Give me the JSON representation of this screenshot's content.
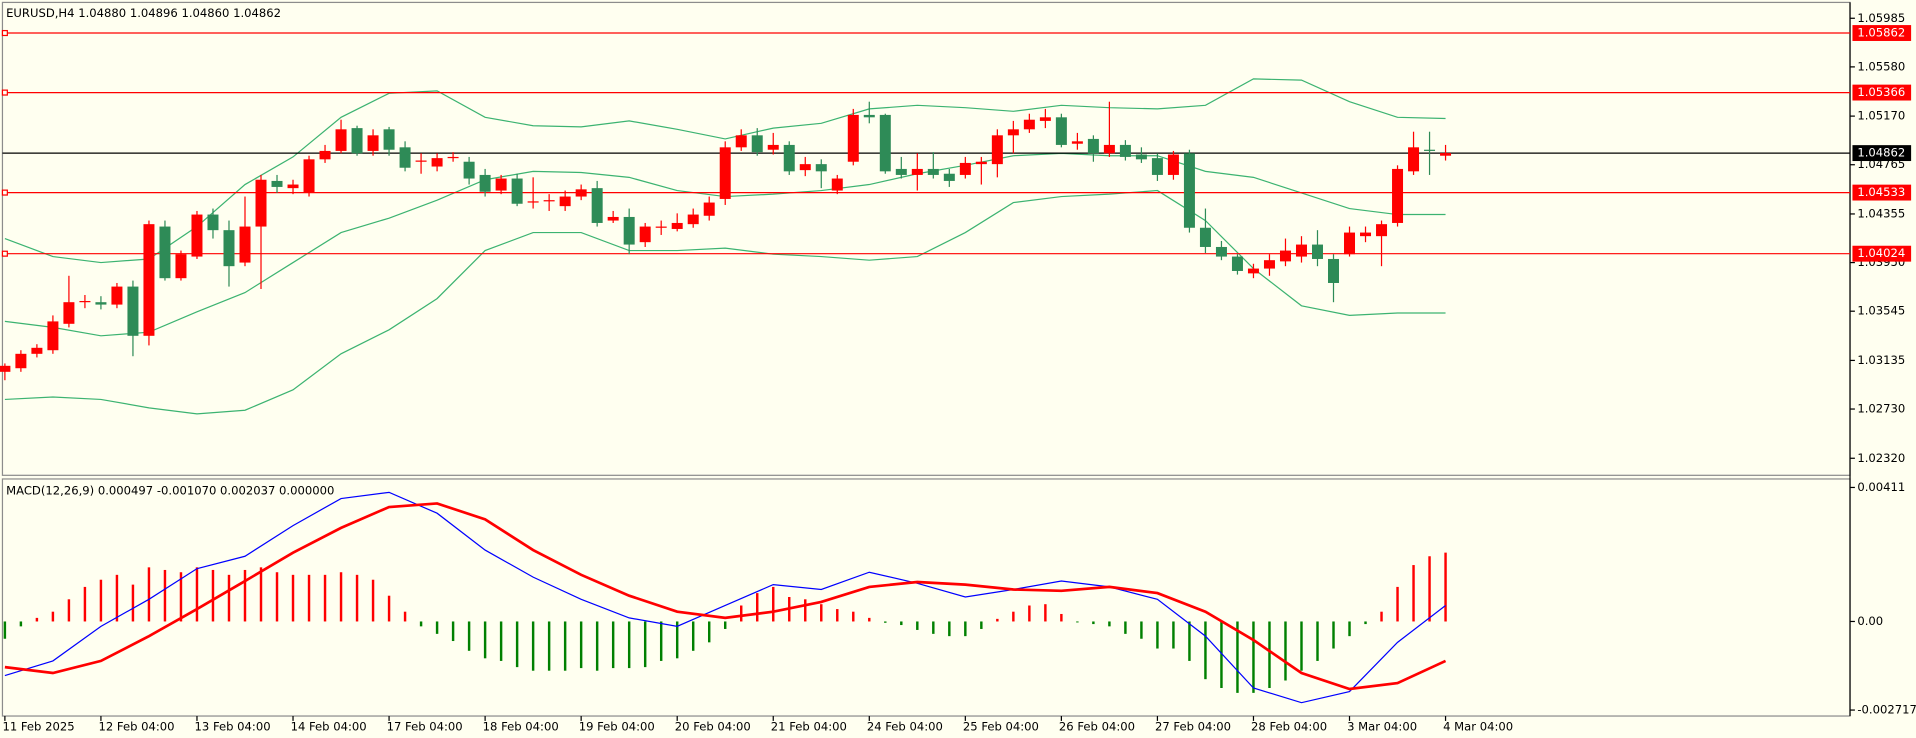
{
  "chart_data": [
    {
      "type": "candlestick",
      "title": "EURUSD,H4  1.04880 1.04896 1.04860 1.04862",
      "categories": [
        "11 Feb 2025",
        null,
        null,
        null,
        null,
        null,
        "12 Feb 04:00",
        null,
        null,
        null,
        null,
        null,
        "13 Feb 04:00",
        null,
        null,
        null,
        null,
        null,
        "14 Feb 04:00",
        null,
        null,
        null,
        null,
        null,
        "17 Feb 04:00",
        null,
        null,
        null,
        null,
        null,
        "18 Feb 04:00",
        null,
        null,
        null,
        null,
        null,
        "19 Feb 04:00",
        null,
        null,
        null,
        null,
        null,
        "20 Feb 04:00",
        null,
        null,
        null,
        null,
        null,
        "21 Feb 04:00",
        null,
        null,
        null,
        null,
        null,
        "24 Feb 04:00",
        null,
        null,
        null,
        null,
        null,
        "25 Feb 04:00",
        null,
        null,
        null,
        null,
        null,
        "26 Feb 04:00",
        null,
        null,
        null,
        null,
        null,
        "27 Feb 04:00",
        null,
        null,
        null,
        null,
        null,
        "28 Feb 04:00",
        null,
        null,
        null,
        null,
        null,
        "3 Mar 04:00",
        null,
        null,
        null,
        null,
        null,
        "4 Mar 04:00"
      ],
      "open": [
        1.0304,
        1.0307,
        1.0319,
        1.0322,
        1.0344,
        1.0362,
        1.0362,
        1.036,
        1.0375,
        1.0334,
        1.0425,
        1.0382,
        1.04,
        1.0435,
        1.0422,
        1.0395,
        1.0425,
        1.0463,
        1.0457,
        1.0453,
        1.0481,
        1.0488,
        1.0507,
        1.0488,
        1.0506,
        1.0491,
        1.0479,
        1.0475,
        1.0482,
        1.0479,
        1.0468,
        1.0455,
        1.0465,
        1.0445,
        1.0446,
        1.0442,
        1.045,
        1.0457,
        1.043,
        1.0433,
        1.0412,
        1.0424,
        1.0423,
        1.0427,
        1.0434,
        1.0448,
        1.0491,
        1.0501,
        1.0489,
        1.0493,
        1.0472,
        1.0477,
        1.0455,
        1.0479,
        1.0518,
        1.0518,
        1.0473,
        1.0468,
        1.0473,
        1.0469,
        1.0468,
        1.0477,
        1.0477,
        1.0501,
        1.0506,
        1.0513,
        1.0516,
        1.0494,
        1.0498,
        1.0486,
        1.0493,
        1.0485,
        1.0482,
        1.0468,
        1.0486,
        1.0424,
        1.0408,
        1.04,
        1.0386,
        1.039,
        1.0396,
        1.04,
        1.041,
        1.0398,
        1.0402,
        1.0417,
        1.0417,
        1.0428,
        1.0471,
        1.0489,
        1.0484
      ],
      "high": [
        1.0311,
        1.0322,
        1.0327,
        1.0351,
        1.0384,
        1.0368,
        1.0367,
        1.0378,
        1.038,
        1.043,
        1.043,
        1.0405,
        1.0438,
        1.044,
        1.043,
        1.045,
        1.0468,
        1.0468,
        1.0464,
        1.0484,
        1.0493,
        1.0514,
        1.0509,
        1.0506,
        1.0508,
        1.0496,
        1.0486,
        1.0486,
        1.0487,
        1.0483,
        1.0473,
        1.0468,
        1.0469,
        1.0466,
        1.0452,
        1.0455,
        1.046,
        1.0463,
        1.0438,
        1.044,
        1.0428,
        1.043,
        1.0436,
        1.044,
        1.045,
        1.0496,
        1.0506,
        1.0507,
        1.0503,
        1.0496,
        1.0483,
        1.0481,
        1.0468,
        1.0523,
        1.0529,
        1.0519,
        1.0483,
        1.0486,
        1.0487,
        1.0473,
        1.0483,
        1.0483,
        1.0506,
        1.0513,
        1.0519,
        1.0523,
        1.0519,
        1.0503,
        1.0501,
        1.0529,
        1.0497,
        1.0491,
        1.0486,
        1.0488,
        1.0489,
        1.044,
        1.0413,
        1.0402,
        1.0394,
        1.0402,
        1.0415,
        1.0417,
        1.0422,
        1.0402,
        1.0425,
        1.0425,
        1.043,
        1.0476,
        1.0504,
        1.0504,
        1.0493
      ],
      "low": [
        1.0297,
        1.0304,
        1.0316,
        1.0319,
        1.0341,
        1.0357,
        1.0356,
        1.0357,
        1.0317,
        1.0326,
        1.038,
        1.038,
        1.0398,
        1.0415,
        1.0375,
        1.0392,
        1.0373,
        1.0453,
        1.0452,
        1.045,
        1.0478,
        1.0486,
        1.0484,
        1.0484,
        1.0484,
        1.0471,
        1.0469,
        1.0471,
        1.0479,
        1.046,
        1.045,
        1.0452,
        1.0442,
        1.044,
        1.0438,
        1.0438,
        1.0447,
        1.0425,
        1.0428,
        1.0402,
        1.0408,
        1.0418,
        1.0421,
        1.0424,
        1.043,
        1.0443,
        1.0488,
        1.0484,
        1.0485,
        1.0468,
        1.0467,
        1.0457,
        1.0452,
        1.0476,
        1.0511,
        1.0469,
        1.0465,
        1.0455,
        1.0465,
        1.0458,
        1.0465,
        1.046,
        1.0466,
        1.0486,
        1.0503,
        1.0507,
        1.0491,
        1.0489,
        1.0479,
        1.0483,
        1.048,
        1.0478,
        1.0463,
        1.0464,
        1.042,
        1.0403,
        1.0397,
        1.0385,
        1.0382,
        1.0384,
        1.0392,
        1.0395,
        1.0392,
        1.0362,
        1.04,
        1.0412,
        1.0392,
        1.0425,
        1.0468,
        1.0468,
        1.048
      ],
      "close": [
        1.0309,
        1.0319,
        1.0324,
        1.0346,
        1.0362,
        1.0363,
        1.036,
        1.0375,
        1.0334,
        1.0427,
        1.0382,
        1.0402,
        1.0435,
        1.0422,
        1.0392,
        1.0425,
        1.0464,
        1.0458,
        1.046,
        1.0481,
        1.0488,
        1.0506,
        1.0486,
        1.0501,
        1.0489,
        1.0474,
        1.048,
        1.0482,
        1.0483,
        1.0465,
        1.0454,
        1.0465,
        1.0444,
        1.0446,
        1.0447,
        1.045,
        1.0456,
        1.0428,
        1.0433,
        1.041,
        1.0425,
        1.0425,
        1.0428,
        1.0435,
        1.0445,
        1.0491,
        1.0501,
        1.0487,
        1.0493,
        1.0471,
        1.0477,
        1.0471,
        1.0465,
        1.0518,
        1.0516,
        1.0471,
        1.0468,
        1.0473,
        1.0468,
        1.0463,
        1.0478,
        1.0479,
        1.0501,
        1.0506,
        1.0514,
        1.0516,
        1.0493,
        1.0496,
        1.0486,
        1.0493,
        1.0483,
        1.0481,
        1.0468,
        1.0485,
        1.0424,
        1.0408,
        1.04,
        1.0388,
        1.039,
        1.0397,
        1.0405,
        1.041,
        1.0398,
        1.0378,
        1.042,
        1.042,
        1.0427,
        1.0473,
        1.0491,
        1.0488,
        1.04862
      ],
      "up_color": "#ff0000",
      "down_color": "#2e8b57",
      "ylim": [
        1.02178,
        1.06117
      ],
      "yticks": [
        1.05985,
        {
          "value": 1.0558,
          "label": "1.05580"
        },
        {
          "value": 1.0517,
          "label": "1.05170"
        },
        1.04765,
        1.04355,
        {
          "value": 1.0395,
          "label": "1.03950"
        },
        1.03545,
        1.03135,
        {
          "value": 1.0273,
          "label": "1.02730"
        },
        {
          "value": 1.0232,
          "label": "1.02320"
        }
      ],
      "series": [
        {
          "color": "#3cb371",
          "x": [
            0,
            3,
            6,
            9,
            12,
            15,
            18,
            21,
            24,
            27,
            30,
            33,
            36,
            39,
            42,
            45,
            48,
            51,
            54,
            57,
            60,
            63,
            66,
            69,
            72,
            75,
            78,
            81,
            84,
            87,
            90
          ],
          "values": [
            1.0415,
            1.04,
            1.0395,
            1.0398,
            1.0425,
            1.046,
            1.0483,
            1.0516,
            1.0536,
            1.0538,
            1.0516,
            1.0509,
            1.0508,
            1.0513,
            1.0506,
            1.0498,
            1.0507,
            1.0511,
            1.0523,
            1.0526,
            1.0524,
            1.0521,
            1.0526,
            1.0524,
            1.0523,
            1.0526,
            1.0548,
            1.0547,
            1.0529,
            1.0516,
            1.0515
          ]
        },
        {
          "color": "#3cb371",
          "x": [
            0,
            3,
            6,
            9,
            12,
            15,
            18,
            21,
            24,
            27,
            30,
            33,
            36,
            39,
            42,
            45,
            48,
            51,
            54,
            57,
            60,
            63,
            66,
            69,
            72,
            75,
            78,
            81,
            84,
            87,
            90
          ],
          "values": [
            1.0346,
            1.0341,
            1.0334,
            1.0337,
            1.0354,
            1.037,
            1.0395,
            1.042,
            1.0432,
            1.0447,
            1.0464,
            1.0471,
            1.047,
            1.0466,
            1.0455,
            1.045,
            1.0452,
            1.0455,
            1.046,
            1.0469,
            1.0476,
            1.0484,
            1.0486,
            1.0484,
            1.0484,
            1.0471,
            1.0466,
            1.0453,
            1.044,
            1.0435,
            1.0435
          ]
        },
        {
          "color": "#3cb371",
          "x": [
            0,
            3,
            6,
            9,
            12,
            15,
            18,
            21,
            24,
            27,
            30,
            33,
            36,
            39,
            42,
            45,
            48,
            51,
            54,
            57,
            60,
            63,
            66,
            69,
            72,
            75,
            78,
            81,
            84,
            87,
            90
          ],
          "values": [
            1.0281,
            1.0283,
            1.0281,
            1.0274,
            1.0269,
            1.0272,
            1.0289,
            1.0319,
            1.0339,
            1.0365,
            1.0405,
            1.042,
            1.042,
            1.0405,
            1.0405,
            1.0407,
            1.0402,
            1.04,
            1.0397,
            1.04,
            1.042,
            1.0445,
            1.045,
            1.0452,
            1.0455,
            1.043,
            1.039,
            1.0359,
            1.0351,
            1.0353,
            1.0353
          ]
        }
      ],
      "levels": [
        {
          "value": 1.05862,
          "color": "#ff0000"
        },
        {
          "value": 1.05366,
          "color": "#ff0000"
        },
        {
          "value": 1.04533,
          "color": "#ff0000"
        },
        {
          "value": 1.04024,
          "color": "#ff0000"
        }
      ],
      "price_line": {
        "value": 1.04862,
        "color": "#000000"
      }
    },
    {
      "type": "macd",
      "title": "MACD(12,26,9) 0.000497 -0.001070 0.002037 0.000000",
      "histogram": {
        "pos_color": "#ff0000",
        "neg_color": "#008000",
        "values": [
          -0.00053,
          -0.00015,
          0.00011,
          0.0003,
          0.00068,
          0.00106,
          0.00128,
          0.00143,
          0.00113,
          0.00166,
          0.00158,
          0.00151,
          0.00166,
          0.00158,
          0.00143,
          0.00158,
          0.00166,
          0.00151,
          0.00143,
          0.00143,
          0.00143,
          0.00151,
          0.00143,
          0.00128,
          0.00079,
          0.0003,
          -0.00015,
          -0.00038,
          -0.0006,
          -0.0009,
          -0.00113,
          -0.00121,
          -0.0014,
          -0.00151,
          -0.00151,
          -0.00151,
          -0.00143,
          -0.00151,
          -0.00143,
          -0.00143,
          -0.0014,
          -0.00121,
          -0.00113,
          -0.0009,
          -0.00064,
          -0.00023,
          0.00049,
          0.00087,
          0.00106,
          0.00075,
          0.00068,
          0.00053,
          0.00038,
          0.0003,
          0.00011,
          -4e-05,
          -0.00011,
          -0.00026,
          -0.00038,
          -0.00045,
          -0.00045,
          -0.00023,
          8e-05,
          0.0003,
          0.00049,
          0.00053,
          0.00023,
          -3e-05,
          -8e-05,
          -0.00015,
          -0.00038,
          -0.00053,
          -0.00083,
          -0.00083,
          -0.00121,
          -0.00177,
          -0.00204,
          -0.00219,
          -0.00219,
          -0.00204,
          -0.00181,
          -0.00151,
          -0.00121,
          -0.00083,
          -0.00045,
          -8e-05,
          0.0003,
          0.00106,
          0.00173,
          0.002,
          0.00211
        ]
      },
      "series": [
        {
          "color": "#0000ff",
          "width": 1,
          "x": [
            0,
            3,
            6,
            9,
            12,
            15,
            18,
            21,
            24,
            27,
            30,
            33,
            36,
            39,
            42,
            45,
            48,
            51,
            54,
            57,
            60,
            63,
            66,
            69,
            72,
            75,
            78,
            81,
            84,
            87,
            90
          ],
          "values": [
            -0.00166,
            -0.00121,
            -0.00015,
            0.00068,
            0.00162,
            0.002,
            0.00294,
            0.00377,
            0.00396,
            0.00332,
            0.00219,
            0.00136,
            0.00068,
            0.00011,
            -0.00015,
            0.00049,
            0.00113,
            0.00098,
            0.00151,
            0.00117,
            0.00075,
            0.00098,
            0.00124,
            0.00106,
            0.00068,
            -0.00045,
            -0.00204,
            -0.00249,
            -0.00215,
            -0.00064,
            0.00049
          ]
        },
        {
          "color": "#ff0000",
          "width": 2.2,
          "x": [
            0,
            3,
            6,
            9,
            12,
            15,
            18,
            21,
            24,
            27,
            30,
            33,
            36,
            39,
            42,
            45,
            48,
            51,
            54,
            57,
            60,
            63,
            66,
            69,
            72,
            75,
            78,
            81,
            84,
            87,
            90
          ],
          "values": [
            -0.0014,
            -0.00158,
            -0.00121,
            -0.00045,
            0.00038,
            0.00124,
            0.00211,
            0.00287,
            0.00351,
            0.00362,
            0.00313,
            0.00219,
            0.00143,
            0.00079,
            0.0003,
            0.00011,
            0.0003,
            0.0006,
            0.00106,
            0.00121,
            0.00113,
            0.00098,
            0.00094,
            0.00106,
            0.00087,
            0.0003,
            -0.00057,
            -0.00158,
            -0.00207,
            -0.00189,
            -0.00121
          ]
        }
      ],
      "ylim": [
        -0.0029,
        0.00437
      ],
      "yticks": [
        0.00411,
        {
          "value": 0,
          "label": "0.00"
        },
        -0.002717
      ]
    }
  ]
}
